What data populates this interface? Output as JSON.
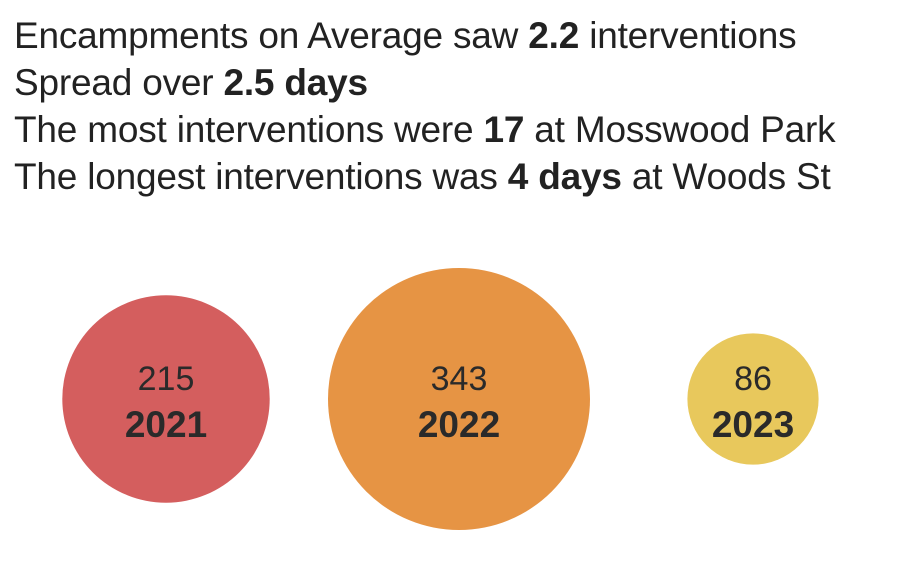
{
  "summary": {
    "line1": {
      "pre": "Encampments on Average saw ",
      "bold": "2.2",
      "post": " interventions"
    },
    "line2": {
      "pre": "Spread over ",
      "bold": "2.5 days",
      "post": ""
    },
    "line3": {
      "pre": "The most interventions were ",
      "bold": "17",
      "post": " at Mosswood Park"
    },
    "line4": {
      "pre": "The longest interventions was ",
      "bold": "4 days",
      "post": " at Woods St"
    }
  },
  "chart_data": {
    "type": "bubble",
    "title": "",
    "series": [
      {
        "category": "2021",
        "value": 215,
        "color": "#d45e5e"
      },
      {
        "category": "2022",
        "value": 343,
        "color": "#e69444"
      },
      {
        "category": "2023",
        "value": 86,
        "color": "#e8c85c"
      }
    ],
    "grid": false,
    "legend": "none"
  }
}
